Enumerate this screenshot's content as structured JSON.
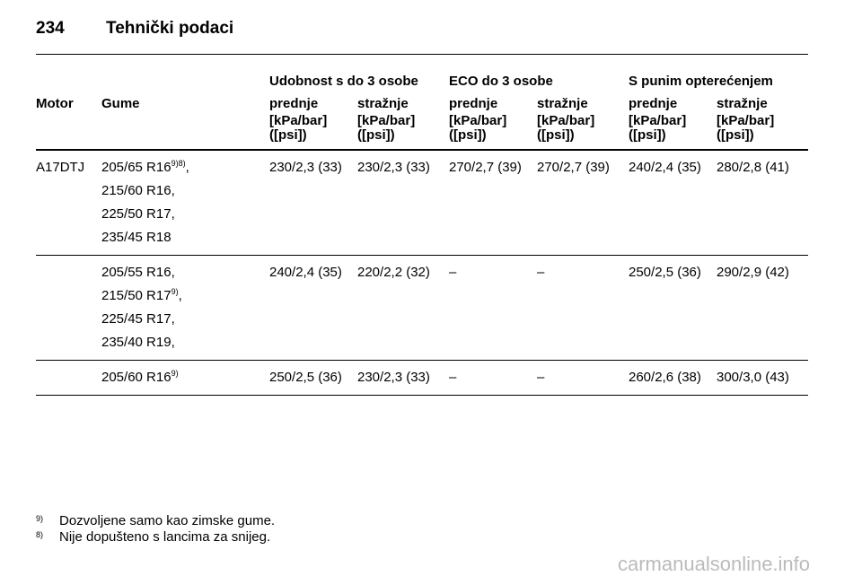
{
  "header": {
    "page": "234",
    "title": "Tehnički podaci"
  },
  "table": {
    "motor_header": "Motor",
    "tyre_header": "Gume",
    "groups": [
      "Udobnost s do 3 osobe",
      "ECO do 3 osobe",
      "S punim opterećenjem"
    ],
    "columns": [
      {
        "label": "prednje",
        "unit": "[kPa/bar]",
        "psi": "([psi])"
      },
      {
        "label": "stražnje",
        "unit": "[kPa/bar]",
        "psi": "([psi])"
      },
      {
        "label": "prednje",
        "unit": "[kPa/bar]",
        "psi": "([psi])"
      },
      {
        "label": "stražnje",
        "unit": "[kPa/bar]",
        "psi": "([psi])"
      },
      {
        "label": "prednje",
        "unit": "[kPa/bar]",
        "psi": "([psi])"
      },
      {
        "label": "stražnje",
        "unit": "[kPa/bar]",
        "psi": "([psi])"
      }
    ],
    "rows": [
      {
        "motor": "A17DTJ",
        "tyres": [
          {
            "text": "205/65 R16",
            "note": "9)8)",
            "tail": ","
          },
          {
            "text": "215/60 R16,"
          },
          {
            "text": "225/50 R17,"
          },
          {
            "text": "235/45 R18"
          }
        ],
        "values": [
          "230/2,3 (33)",
          "230/2,3 (33)",
          "270/2,7 (39)",
          "270/2,7 (39)",
          "240/2,4 (35)",
          "280/2,8 (41)"
        ]
      },
      {
        "tyres": [
          {
            "text": "205/55 R16,"
          },
          {
            "text": "215/50 R17",
            "note": "9)",
            "tail": ","
          },
          {
            "text": "225/45 R17,"
          },
          {
            "text": "235/40 R19,"
          }
        ],
        "values": [
          "240/2,4 (35)",
          "220/2,2 (32)",
          "–",
          "–",
          "250/2,5 (36)",
          "290/2,9 (42)"
        ]
      },
      {
        "tyres": [
          {
            "text": "205/60 R16",
            "note": "9)"
          }
        ],
        "values": [
          "250/2,5 (36)",
          "230/2,3 (33)",
          "–",
          "–",
          "260/2,6 (38)",
          "300/3,0 (43)"
        ]
      }
    ]
  },
  "footnotes": [
    {
      "mark": "9)",
      "text": "Dozvoljene samo kao zimske gume."
    },
    {
      "mark": "8)",
      "text": "Nije dopušteno s lancima za snijeg."
    }
  ],
  "watermark": "carmanualsonline.info"
}
